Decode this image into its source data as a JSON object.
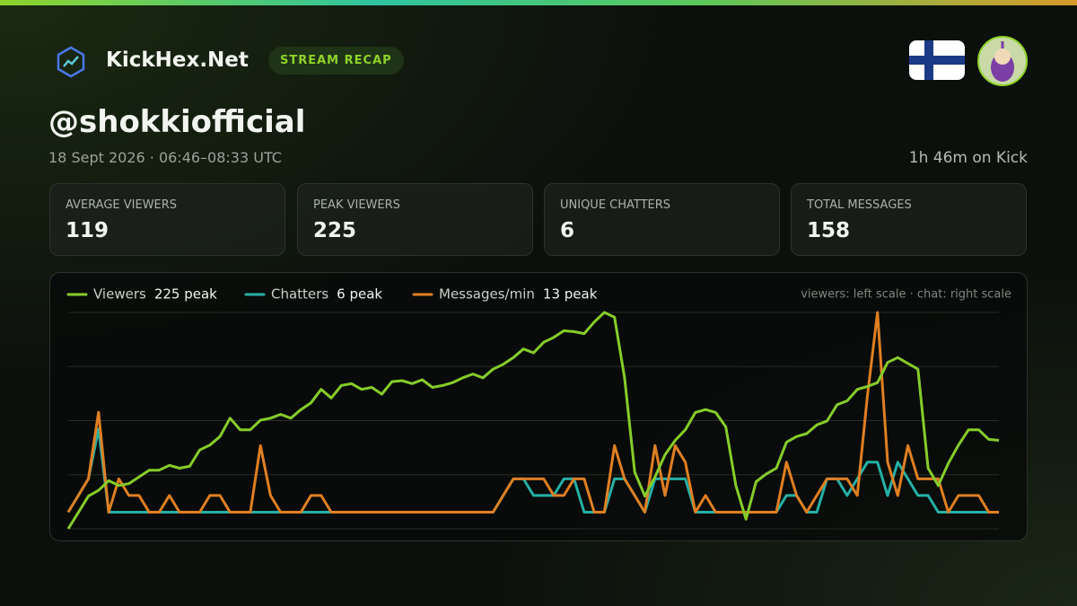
{
  "header": {
    "brand": "KickHex.Net",
    "badge": "STREAM RECAP",
    "username": "@shokkiofficial",
    "date": "18 Sept 2026 · 06:46–08:33 UTC",
    "duration": "1h 46m on Kick"
  },
  "stats": [
    {
      "label": "AVERAGE VIEWERS",
      "value": "119"
    },
    {
      "label": "PEAK VIEWERS",
      "value": "225"
    },
    {
      "label": "UNIQUE CHATTERS",
      "value": "6"
    },
    {
      "label": "TOTAL MESSAGES",
      "value": "158"
    }
  ],
  "chart_data": {
    "type": "line",
    "note": "viewers: left scale · chat: right scale",
    "grid": true,
    "ylim": [
      0,
      225
    ],
    "yticks": [
      0,
      56.25,
      112.5,
      168.75,
      225
    ],
    "y2lim": [
      0,
      13
    ],
    "series": [
      {
        "name": "Viewers",
        "peak_label": "225 peak",
        "color": "#86cc2a",
        "values": [
          0,
          17,
          34,
          40,
          50,
          45,
          47,
          54,
          61,
          61,
          66,
          63,
          65,
          82,
          87,
          96,
          115,
          103,
          103,
          113,
          115,
          119,
          115,
          124,
          131,
          145,
          136,
          149,
          151,
          145,
          147,
          140,
          153,
          154,
          151,
          155,
          147,
          149,
          152,
          157,
          161,
          157,
          166,
          171,
          178,
          187,
          183,
          194,
          199,
          206,
          205,
          203,
          215,
          225,
          220,
          157,
          59,
          34,
          54,
          77,
          92,
          103,
          121,
          124,
          121,
          106,
          45,
          10,
          49,
          57,
          63,
          90,
          96,
          99,
          108,
          112,
          129,
          133,
          145,
          148,
          152,
          173,
          178,
          172,
          166,
          63,
          45,
          68,
          87,
          103,
          103,
          93,
          92
        ]
      },
      {
        "name": "Chatters",
        "peak_label": "6 peak",
        "color": "#25b0a6",
        "axis": "y2",
        "values": [
          1,
          2,
          3,
          6,
          1,
          1,
          1,
          1,
          1,
          1,
          1,
          1,
          1,
          1,
          1,
          1,
          1,
          1,
          1,
          1,
          1,
          1,
          1,
          1,
          1,
          1,
          1,
          1,
          1,
          1,
          1,
          1,
          1,
          1,
          1,
          1,
          1,
          1,
          1,
          1,
          1,
          1,
          1,
          2,
          3,
          3,
          2,
          2,
          2,
          3,
          3,
          1,
          1,
          1,
          3,
          3,
          2,
          1,
          3,
          3,
          3,
          3,
          1,
          1,
          1,
          1,
          1,
          1,
          1,
          1,
          1,
          2,
          2,
          1,
          1,
          3,
          3,
          2,
          3,
          4,
          4,
          2,
          4,
          3,
          2,
          2,
          1,
          1,
          1,
          1,
          1,
          1,
          1
        ]
      },
      {
        "name": "Messages/min",
        "peak_label": "13 peak",
        "color": "#e07f22",
        "axis": "y2",
        "values": [
          1,
          2,
          3,
          7,
          1,
          3,
          2,
          2,
          1,
          1,
          2,
          1,
          1,
          1,
          2,
          2,
          1,
          1,
          1,
          5,
          2,
          1,
          1,
          1,
          2,
          2,
          1,
          1,
          1,
          1,
          1,
          1,
          1,
          1,
          1,
          1,
          1,
          1,
          1,
          1,
          1,
          1,
          1,
          2,
          3,
          3,
          3,
          3,
          2,
          2,
          3,
          3,
          1,
          1,
          5,
          3,
          2,
          1,
          5,
          2,
          5,
          4,
          1,
          2,
          1,
          1,
          1,
          1,
          1,
          1,
          1,
          4,
          2,
          1,
          2,
          3,
          3,
          3,
          2,
          8,
          13,
          4,
          2,
          5,
          3,
          3,
          3,
          1,
          2,
          2,
          2,
          1,
          1
        ]
      }
    ]
  }
}
